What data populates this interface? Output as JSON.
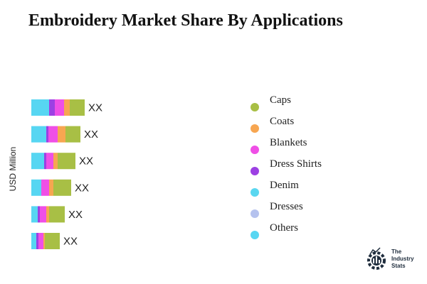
{
  "title": "Embroidery Market Share By Applications",
  "chart_data": {
    "type": "bar",
    "orientation": "horizontal",
    "stacked": true,
    "ylabel": "USD Million",
    "categories": [
      "",
      "",
      "",
      "",
      "",
      ""
    ],
    "series": [
      {
        "name": "Others",
        "color": "#57d6f2",
        "values": [
          25,
          21,
          18,
          14,
          9,
          7
        ]
      },
      {
        "name": "Dresses",
        "color": "#b5c2ee",
        "values": [
          0,
          0,
          0,
          0,
          0,
          0
        ]
      },
      {
        "name": "Denim",
        "color": "#5ad7f0",
        "values": [
          0,
          0,
          0,
          0,
          0,
          0
        ]
      },
      {
        "name": "Dress Shirts",
        "color": "#9c40e3",
        "values": [
          33,
          24,
          21,
          14,
          12,
          10
        ]
      },
      {
        "name": "Blankets",
        "color": "#ef4fe6",
        "values": [
          46,
          37,
          31,
          25,
          21,
          17
        ]
      },
      {
        "name": "Coats",
        "color": "#f7a651",
        "values": [
          54,
          48,
          37,
          31,
          25,
          19
        ]
      },
      {
        "name": "Caps",
        "color": "#a8bf45",
        "values": [
          75,
          69,
          62,
          56,
          47,
          40
        ]
      }
    ],
    "value_labels": [
      "XX",
      "XX",
      "XX",
      "XX",
      "XX",
      "XX"
    ],
    "xlim": [
      0,
      250
    ],
    "grid": false,
    "legend_position": "right"
  },
  "legend": [
    {
      "label": "Caps",
      "color": "#a8bf45"
    },
    {
      "label": "Coats",
      "color": "#f7a651"
    },
    {
      "label": "Blankets",
      "color": "#ef4fe6"
    },
    {
      "label": "Dress Shirts",
      "color": "#9c40e3"
    },
    {
      "label": "Denim",
      "color": "#5ad7f0"
    },
    {
      "label": "Dresses",
      "color": "#b5c2ee"
    },
    {
      "label": "Others",
      "color": "#57d6f2"
    }
  ],
  "brand": {
    "line1": "The",
    "line2": "Industry",
    "line3": "Stats",
    "color": "#1f2d3d"
  }
}
